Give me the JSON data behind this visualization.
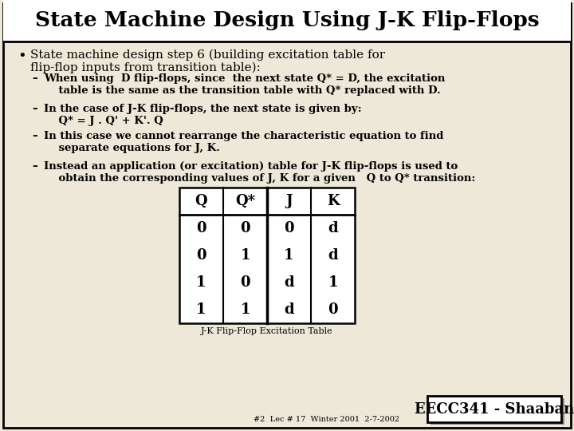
{
  "title": "State Machine Design Using J-K Flip-Flops",
  "background_color": "#ede8d8",
  "title_bg_color": "#ffffff",
  "border_color": "#000000",
  "title_fontsize": 19,
  "bullet_text_line1": "State machine design step 6 (building excitation table for",
  "bullet_text_line2": "flip-flop inputs from transition table):",
  "sub_bullets": [
    "When using  D flip-flops, since  the next state Q* = D, the excitation\n    table is the same as the transition table with Q* replaced with D.",
    "In the case of J-K flip-flops, the next state is given by:\n    Q* = J . Q' + K'. Q",
    "In this case we cannot rearrange the characteristic equation to find\n    separate equations for J, K.",
    "Instead an application (or excitation) table for J-K flip-flops is used to\n    obtain the corresponding values of J, K for a given   Q to Q* transition:"
  ],
  "table_headers": [
    "Q",
    "Q*",
    "J",
    "K"
  ],
  "table_data": [
    [
      "0",
      "0",
      "0",
      "d"
    ],
    [
      "0",
      "1",
      "1",
      "d"
    ],
    [
      "1",
      "0",
      "d",
      "1"
    ],
    [
      "1",
      "1",
      "d",
      "0"
    ]
  ],
  "table_caption": "J-K Flip-Flop Excitation Table",
  "footer_box_text": "EECC341 - Shaaban",
  "footer_small_text": "#2  Lec # 17  Winter 2001  2-7-2002"
}
